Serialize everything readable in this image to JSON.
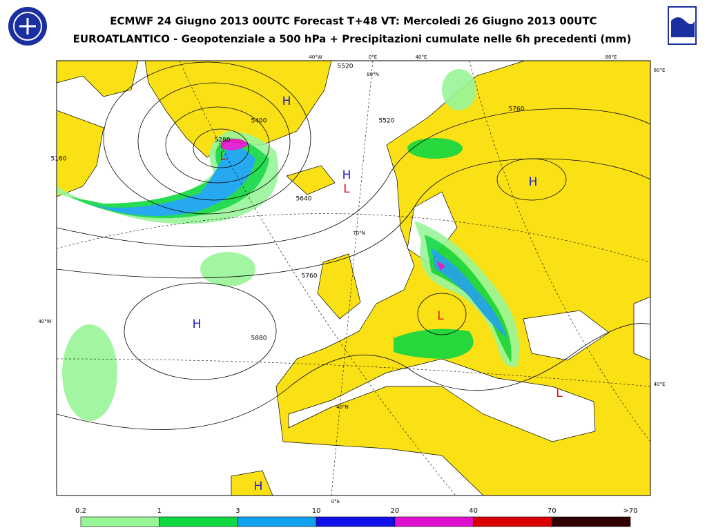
{
  "header": {
    "title": "ECMWF 24 Giugno 2013 00UTC Forecast T+48 VT: Mercoledi 26 Giugno 2013 00UTC",
    "subtitle": "EUROATLANTICO - Geopotenziale a 500 hPa + Precipitazioni cumulate nelle 6h precedenti (mm)"
  },
  "map": {
    "graticule_labels": [
      "40°W",
      "0°E",
      "40°E",
      "80°E",
      "80°E",
      "80°N",
      "70°N",
      "40°W",
      "40°E",
      "40°N",
      "0°E"
    ],
    "contour_labels": [
      "5520",
      "5400",
      "5280",
      "5520",
      "5640",
      "5760",
      "5760",
      "5880",
      "5160"
    ],
    "centers": [
      {
        "label": "H",
        "color": "#1a1ad0"
      },
      {
        "label": "L",
        "color": "#e01010"
      },
      {
        "label": "H",
        "color": "#1a1ad0"
      },
      {
        "label": "L",
        "color": "#e01010"
      },
      {
        "label": "H",
        "color": "#1a1ad0"
      },
      {
        "label": "H",
        "color": "#1a1ad0"
      },
      {
        "label": "L",
        "color": "#e01010"
      },
      {
        "label": "L",
        "color": "#e01010"
      },
      {
        "label": "H",
        "color": "#1a1ad0"
      }
    ]
  },
  "legend": {
    "labels": [
      "0.2",
      "1",
      "3",
      "10",
      "20",
      "40",
      "70",
      ">70"
    ],
    "colors": [
      "#98f598",
      "#10d840",
      "#10a0f0",
      "#1010e8",
      "#e010d0",
      "#d80000",
      "#300000"
    ]
  }
}
